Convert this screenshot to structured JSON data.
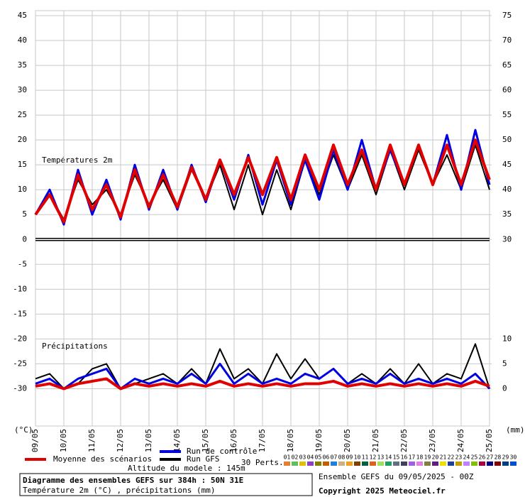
{
  "chart_data": {
    "type": "line",
    "title": "Diagramme des ensembles GEFS sur 384h : 50N 31E",
    "subtitle": "Température 2m (°C) , précipitations (mm)",
    "annotations": {
      "temperature": "Températures 2m",
      "precipitation": "Précipitations",
      "left_unit": "(°C)",
      "right_unit": "(mm)",
      "altitude": "Altitude du modele : 145m",
      "run": "Ensemble GEFS du 09/05/2025 - 00Z",
      "copyright": "Copyright 2025 Meteociel.fr",
      "members_label": "30 Perts."
    },
    "x": [
      0,
      0.5,
      1,
      1.5,
      2,
      2.5,
      3,
      3.5,
      4,
      4.5,
      5,
      5.5,
      6,
      6.5,
      7,
      7.5,
      8,
      8.5,
      9,
      9.5,
      10,
      10.5,
      11,
      11.5,
      12,
      12.5,
      13,
      13.5,
      14,
      14.5,
      15,
      15.5,
      16
    ],
    "xlim": [
      0,
      16
    ],
    "xticks": [
      {
        "value": 0,
        "label": "09/05"
      },
      {
        "value": 1,
        "label": "10/05"
      },
      {
        "value": 2,
        "label": "11/05"
      },
      {
        "value": 3,
        "label": "12/05"
      },
      {
        "value": 4,
        "label": "13/05"
      },
      {
        "value": 5,
        "label": "14/05"
      },
      {
        "value": 6,
        "label": "15/05"
      },
      {
        "value": 7,
        "label": "16/05"
      },
      {
        "value": 8,
        "label": "17/05"
      },
      {
        "value": 9,
        "label": "18/05"
      },
      {
        "value": 10,
        "label": "19/05"
      },
      {
        "value": 11,
        "label": "20/05"
      },
      {
        "value": 12,
        "label": "21/05"
      },
      {
        "value": 13,
        "label": "22/05"
      },
      {
        "value": 14,
        "label": "23/05"
      },
      {
        "value": 15,
        "label": "24/05"
      },
      {
        "value": 16,
        "label": "25/05"
      }
    ],
    "ylim": [
      -37.5,
      46
    ],
    "yticks": [
      45,
      40,
      35,
      30,
      25,
      20,
      15,
      10,
      5,
      0,
      -5,
      -10,
      -15,
      -20,
      -25,
      -30
    ],
    "y2lim": [
      -7.5,
      76
    ],
    "y2ticks": [
      75,
      70,
      65,
      60,
      55,
      50,
      45,
      40,
      35,
      30,
      10,
      5,
      0
    ],
    "grid": true,
    "series": [
      {
        "name": "Moyenne des scénarios",
        "color": "#e00000",
        "values": [
          5,
          9,
          3.5,
          13,
          6,
          11,
          4.5,
          14,
          6.5,
          13,
          6.5,
          14.5,
          8,
          16,
          9,
          16.5,
          9,
          16.5,
          8,
          17,
          10,
          19,
          11,
          18,
          10,
          19,
          11,
          19,
          11,
          19,
          11,
          20,
          12
        ],
        "precip": [
          0.5,
          1,
          0,
          1,
          1.5,
          2,
          0,
          1,
          0.5,
          1,
          0.5,
          1,
          0.5,
          1.5,
          0.5,
          1,
          0.5,
          1,
          0.5,
          1,
          1,
          1.5,
          0.5,
          1,
          0.5,
          1,
          0.5,
          1,
          0.5,
          1,
          0.5,
          1.5,
          0.5
        ]
      },
      {
        "name": "Run de contrôle",
        "color": "#0000e0",
        "values": [
          5,
          10,
          3,
          14,
          5,
          12,
          4,
          15,
          6,
          14,
          6,
          15,
          7.5,
          16,
          8,
          17,
          7,
          16,
          7,
          16,
          8,
          18,
          10,
          20,
          10,
          18,
          11,
          19,
          11,
          21,
          10,
          22,
          11
        ],
        "precip": [
          1,
          2,
          0,
          2,
          3,
          4,
          0,
          2,
          1,
          2,
          1,
          3,
          1,
          5,
          1,
          3,
          1,
          2,
          1,
          3,
          2,
          4,
          1,
          2,
          1,
          3,
          1,
          2,
          1,
          2,
          1,
          3,
          0
        ]
      },
      {
        "name": "Run GFS",
        "color": "#000000",
        "values": [
          5,
          9,
          4,
          12,
          7,
          10,
          5,
          13,
          7,
          12,
          6,
          14,
          8,
          15,
          6,
          15,
          5,
          14,
          6,
          16,
          9,
          17,
          10,
          17,
          9,
          18,
          10,
          18,
          11,
          17,
          10,
          19,
          10
        ],
        "precip": [
          2,
          3,
          0,
          1,
          4,
          5,
          0,
          1,
          2,
          3,
          1,
          4,
          1,
          8,
          2,
          4,
          1,
          7,
          2,
          6,
          2,
          4,
          1,
          3,
          1,
          4,
          1,
          5,
          1,
          3,
          2,
          9,
          0
        ]
      }
    ],
    "members": [
      {
        "name": "01",
        "color": "#e08030"
      },
      {
        "name": "02",
        "color": "#60c060"
      },
      {
        "name": "03",
        "color": "#e0c000"
      },
      {
        "name": "04",
        "color": "#9040c0"
      },
      {
        "name": "05",
        "color": "#808000"
      },
      {
        "name": "06",
        "color": "#c06000"
      },
      {
        "name": "07",
        "color": "#2080e0"
      },
      {
        "name": "08",
        "color": "#d0b080"
      },
      {
        "name": "09",
        "color": "#f0a020"
      },
      {
        "name": "10",
        "color": "#804000"
      },
      {
        "name": "11",
        "color": "#006040"
      },
      {
        "name": "12",
        "color": "#e06020"
      },
      {
        "name": "13",
        "color": "#a0e060"
      },
      {
        "name": "14",
        "color": "#20a060"
      },
      {
        "name": "15",
        "color": "#607080"
      },
      {
        "name": "16",
        "color": "#404060"
      },
      {
        "name": "17",
        "color": "#a060e0"
      },
      {
        "name": "18",
        "color": "#e080e0"
      },
      {
        "name": "19",
        "color": "#808040"
      },
      {
        "name": "20",
        "color": "#602080"
      },
      {
        "name": "21",
        "color": "#f0e000"
      },
      {
        "name": "22",
        "color": "#2040a0"
      },
      {
        "name": "23",
        "color": "#c0a000"
      },
      {
        "name": "24",
        "color": "#c080ff"
      },
      {
        "name": "25",
        "color": "#80c000"
      },
      {
        "name": "26",
        "color": "#a00040"
      },
      {
        "name": "27",
        "color": "#000080"
      },
      {
        "name": "28",
        "color": "#800000"
      },
      {
        "name": "29",
        "color": "#004080"
      },
      {
        "name": "30",
        "color": "#0050d0"
      }
    ]
  }
}
